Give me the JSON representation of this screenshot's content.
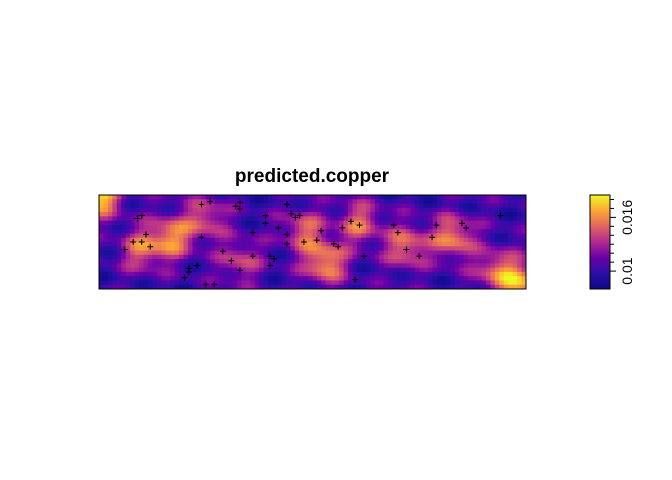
{
  "chart_data": {
    "type": "heatmap",
    "title": "predicted.copper",
    "xlabel": "",
    "ylabel": "",
    "legend": {
      "position": "right",
      "range": [
        0.008,
        0.0185
      ],
      "ticks": [
        0.01,
        0.016
      ],
      "tick_labels": [
        "0.01",
        "0.016"
      ],
      "minor_ticks": [
        0.011,
        0.012,
        0.013,
        0.014,
        0.015,
        0.017,
        0.018
      ],
      "colors": [
        "#0D0887",
        "#2A0FA8",
        "#6A00A8",
        "#B12A90",
        "#E16462",
        "#FCA636",
        "#F0F921"
      ]
    },
    "base_value": 0.0102,
    "hotspots": [
      {
        "cx": 0.0,
        "cy": 1.0,
        "v": 0.0185
      },
      {
        "cx": 0.1,
        "cy": 0.42,
        "v": 0.015
      },
      {
        "cx": 0.17,
        "cy": 0.55,
        "v": 0.016
      },
      {
        "cx": 0.25,
        "cy": 0.75,
        "v": 0.0145
      },
      {
        "cx": 0.33,
        "cy": 0.3,
        "v": 0.014
      },
      {
        "cx": 0.48,
        "cy": 0.62,
        "v": 0.0148
      },
      {
        "cx": 0.53,
        "cy": 0.28,
        "v": 0.0165
      },
      {
        "cx": 0.61,
        "cy": 0.7,
        "v": 0.015
      },
      {
        "cx": 0.72,
        "cy": 0.45,
        "v": 0.0155
      },
      {
        "cx": 0.83,
        "cy": 0.55,
        "v": 0.016
      },
      {
        "cx": 0.93,
        "cy": 0.2,
        "v": 0.015
      },
      {
        "cx": 0.99,
        "cy": 0.05,
        "v": 0.0165
      }
    ],
    "sample_points": [
      [
        0.09,
        0.75
      ],
      [
        0.1,
        0.78
      ],
      [
        0.11,
        0.58
      ],
      [
        0.1,
        0.5
      ],
      [
        0.08,
        0.5
      ],
      [
        0.06,
        0.42
      ],
      [
        0.12,
        0.45
      ],
      [
        0.21,
        0.22
      ],
      [
        0.23,
        0.25
      ],
      [
        0.21,
        0.18
      ],
      [
        0.2,
        0.12
      ],
      [
        0.25,
        0.05
      ],
      [
        0.27,
        0.05
      ],
      [
        0.24,
        0.9
      ],
      [
        0.26,
        0.93
      ],
      [
        0.24,
        0.55
      ],
      [
        0.32,
        0.88
      ],
      [
        0.33,
        0.92
      ],
      [
        0.33,
        0.85
      ],
      [
        0.39,
        0.78
      ],
      [
        0.42,
        0.65
      ],
      [
        0.44,
        0.9
      ],
      [
        0.45,
        0.8
      ],
      [
        0.46,
        0.76
      ],
      [
        0.47,
        0.78
      ],
      [
        0.4,
        0.35
      ],
      [
        0.4,
        0.25
      ],
      [
        0.36,
        0.6
      ],
      [
        0.39,
        0.7
      ],
      [
        0.44,
        0.58
      ],
      [
        0.48,
        0.5
      ],
      [
        0.51,
        0.52
      ],
      [
        0.52,
        0.62
      ],
      [
        0.57,
        0.65
      ],
      [
        0.59,
        0.72
      ],
      [
        0.61,
        0.68
      ],
      [
        0.55,
        0.48
      ],
      [
        0.56,
        0.45
      ],
      [
        0.6,
        0.1
      ],
      [
        0.62,
        0.35
      ],
      [
        0.69,
        0.68
      ],
      [
        0.7,
        0.6
      ],
      [
        0.72,
        0.42
      ],
      [
        0.75,
        0.35
      ],
      [
        0.78,
        0.55
      ],
      [
        0.79,
        0.68
      ],
      [
        0.85,
        0.7
      ],
      [
        0.86,
        0.65
      ],
      [
        0.94,
        0.78
      ],
      [
        0.29,
        0.4
      ],
      [
        0.31,
        0.3
      ],
      [
        0.33,
        0.2
      ],
      [
        0.36,
        0.35
      ],
      [
        0.41,
        0.32
      ],
      [
        0.44,
        0.48
      ]
    ]
  }
}
